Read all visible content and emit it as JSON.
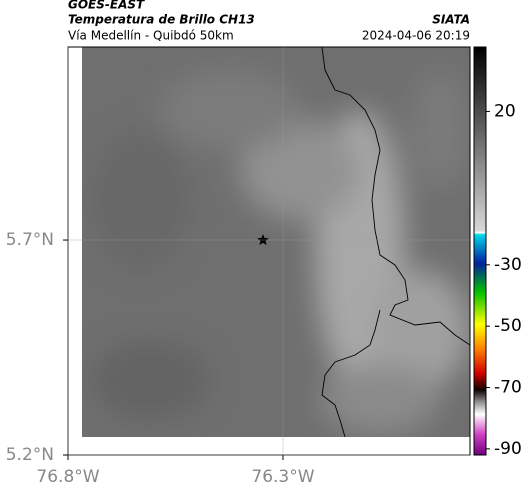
{
  "header": {
    "title": "GOES-EAST",
    "subtitle": "Temperatura de Brillo CH13",
    "route": "Vía Medellín - Quibdó 50km",
    "source": "SIATA",
    "timestamp": "2024-04-06 20:19"
  },
  "map": {
    "xlim": [
      -76.8,
      -75.865
    ],
    "ylim": [
      5.2,
      6.149
    ],
    "xticks": [
      {
        "value": -76.8,
        "label": "76.8°W"
      },
      {
        "value": -76.3,
        "label": "76.3°W"
      }
    ],
    "yticks": [
      {
        "value": 5.2,
        "label": "5.2°N"
      },
      {
        "value": 5.7,
        "label": "5.7°N"
      }
    ],
    "grid": true
  },
  "colorbar": {
    "lim": [
      -92,
      41
    ],
    "ticks": [
      20,
      -30,
      -50,
      -70,
      -90
    ]
  }
}
